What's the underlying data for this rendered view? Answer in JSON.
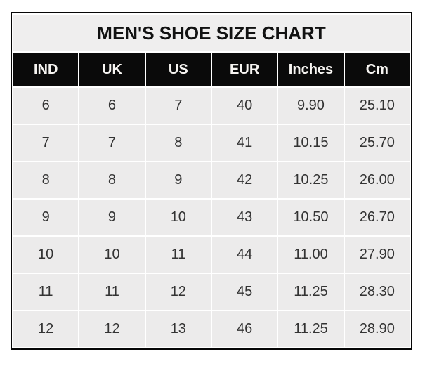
{
  "title": "MEN'S SHOE SIZE CHART",
  "table": {
    "columns": [
      "IND",
      "UK",
      "US",
      "EUR",
      "Inches",
      "Cm"
    ],
    "rows": [
      [
        "6",
        "6",
        "7",
        "40",
        "9.90",
        "25.10"
      ],
      [
        "7",
        "7",
        "8",
        "41",
        "10.15",
        "25.70"
      ],
      [
        "8",
        "8",
        "9",
        "42",
        "10.25",
        "26.00"
      ],
      [
        "9",
        "9",
        "10",
        "43",
        "10.50",
        "26.70"
      ],
      [
        "10",
        "10",
        "11",
        "44",
        "11.00",
        "27.90"
      ],
      [
        "11",
        "11",
        "12",
        "45",
        "11.25",
        "28.30"
      ],
      [
        "12",
        "12",
        "13",
        "46",
        "11.25",
        "28.90"
      ]
    ]
  },
  "colors": {
    "page_bg": "#ffffff",
    "outer_border": "#060606",
    "title_bg": "#EFEEEE",
    "header_bg": "#0A0A0A",
    "header_text": "#F7F5F2",
    "cell_bg": "#ECEBEB",
    "data_text": "#333333",
    "grid_lines": "#ffffff"
  },
  "chart_data": {
    "type": "table",
    "title": "MEN'S SHOE SIZE CHART",
    "columns": [
      "IND",
      "UK",
      "US",
      "EUR",
      "Inches",
      "Cm"
    ],
    "rows": [
      [
        6,
        6,
        7,
        40,
        9.9,
        25.1
      ],
      [
        7,
        7,
        8,
        41,
        10.15,
        25.7
      ],
      [
        8,
        8,
        9,
        42,
        10.25,
        26.0
      ],
      [
        9,
        9,
        10,
        43,
        10.5,
        26.7
      ],
      [
        10,
        10,
        11,
        44,
        11.0,
        27.9
      ],
      [
        11,
        11,
        12,
        45,
        11.25,
        28.3
      ],
      [
        12,
        12,
        13,
        46,
        11.25,
        28.9
      ]
    ],
    "layout": {
      "grid": "white cell-spacing lines on light gray cells",
      "header_style": "black band, white bold text",
      "title_position": "merged top row, centered"
    }
  }
}
